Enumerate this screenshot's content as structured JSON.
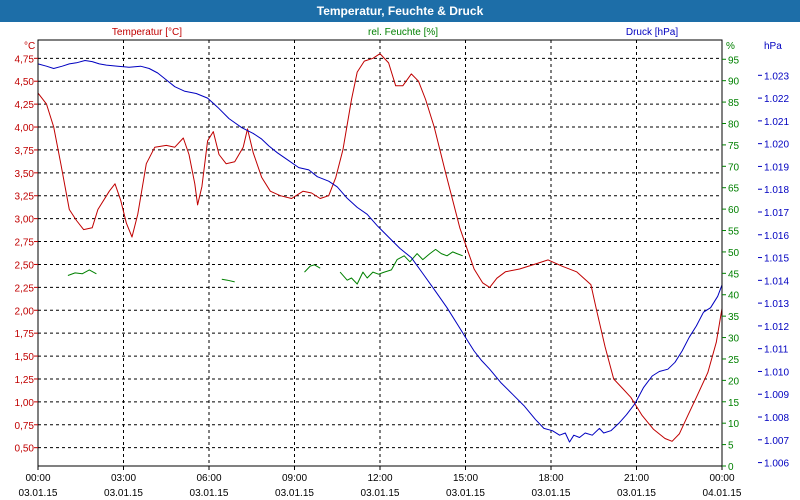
{
  "window": {
    "title": "Temperatur, Feuchte & Druck"
  },
  "chart_data": {
    "type": "line",
    "title": "Temperatur, Feuchte & Druck",
    "x_ticks": [
      {
        "time": "00:00",
        "date": "03.01.15"
      },
      {
        "time": "03:00",
        "date": "03.01.15"
      },
      {
        "time": "06:00",
        "date": "03.01.15"
      },
      {
        "time": "09:00",
        "date": "03.01.15"
      },
      {
        "time": "12:00",
        "date": "03.01.15"
      },
      {
        "time": "15:00",
        "date": "03.01.15"
      },
      {
        "time": "18:00",
        "date": "03.01.15"
      },
      {
        "time": "21:00",
        "date": "03.01.15"
      },
      {
        "time": "00:00",
        "date": "04.01.15"
      }
    ],
    "xlim_hours": [
      0,
      24
    ],
    "axes": {
      "temperature": {
        "label": "Temperatur [°C]",
        "unit": "°C",
        "color": "#c00000",
        "ylim": [
          0.3,
          4.95
        ],
        "ticks": [
          "4,75",
          "4,50",
          "4,25",
          "4,00",
          "3,75",
          "3,50",
          "3,25",
          "3,00",
          "2,75",
          "2,50",
          "2,25",
          "2,00",
          "1,75",
          "1,50",
          "1,25",
          "1,00",
          "0,75",
          "0,50"
        ],
        "tick_values": [
          4.75,
          4.5,
          4.25,
          4.0,
          3.75,
          3.5,
          3.25,
          3.0,
          2.75,
          2.5,
          2.25,
          2.0,
          1.75,
          1.5,
          1.25,
          1.0,
          0.75,
          0.5
        ]
      },
      "humidity": {
        "label": "rel. Feuchte [%]",
        "unit": "%",
        "color": "#008000",
        "ylim": [
          0,
          99.5
        ],
        "ticks": [
          "95",
          "90",
          "85",
          "80",
          "75",
          "70",
          "65",
          "60",
          "55",
          "50",
          "45",
          "40",
          "35",
          "30",
          "25",
          "20",
          "15",
          "10",
          "5",
          "0"
        ],
        "tick_values": [
          95,
          90,
          85,
          80,
          75,
          70,
          65,
          60,
          55,
          50,
          45,
          40,
          35,
          30,
          25,
          20,
          15,
          10,
          5,
          0
        ]
      },
      "pressure": {
        "label": "Druck [hPa]",
        "unit": "hPa",
        "color": "#0000c0",
        "ylim": [
          1005.85,
          1024.55
        ],
        "ticks": [
          "1.023",
          "1.022",
          "1.021",
          "1.020",
          "1.019",
          "1.018",
          "1.017",
          "1.016",
          "1.015",
          "1.014",
          "1.013",
          "1.012",
          "1.011",
          "1.010",
          "1.009",
          "1.008",
          "1.007",
          "1.006"
        ],
        "tick_values": [
          1023,
          1022,
          1021,
          1020,
          1019,
          1018,
          1017,
          1016,
          1015,
          1014,
          1013,
          1012,
          1011,
          1010,
          1009,
          1008,
          1007,
          1006
        ]
      }
    },
    "series": [
      {
        "name": "Temperatur [°C]",
        "axis": "temperature",
        "color": "#c00000",
        "segments": [
          [
            [
              0,
              4.37
            ],
            [
              0.3,
              4.25
            ],
            [
              0.55,
              4.0
            ],
            [
              0.8,
              3.6
            ],
            [
              1.1,
              3.1
            ],
            [
              1.35,
              2.98
            ],
            [
              1.6,
              2.88
            ],
            [
              1.9,
              2.9
            ],
            [
              2.1,
              3.1
            ],
            [
              2.5,
              3.3
            ],
            [
              2.7,
              3.38
            ],
            [
              2.9,
              3.2
            ],
            [
              3.1,
              2.95
            ],
            [
              3.3,
              2.8
            ],
            [
              3.5,
              3.05
            ],
            [
              3.8,
              3.6
            ],
            [
              4.1,
              3.78
            ],
            [
              4.5,
              3.8
            ],
            [
              4.8,
              3.78
            ],
            [
              5.1,
              3.88
            ],
            [
              5.3,
              3.7
            ],
            [
              5.5,
              3.38
            ],
            [
              5.6,
              3.15
            ],
            [
              5.75,
              3.35
            ],
            [
              5.95,
              3.85
            ],
            [
              6.15,
              3.95
            ],
            [
              6.35,
              3.7
            ],
            [
              6.6,
              3.6
            ],
            [
              6.9,
              3.62
            ],
            [
              7.2,
              3.78
            ],
            [
              7.35,
              3.98
            ],
            [
              7.55,
              3.72
            ],
            [
              7.85,
              3.45
            ],
            [
              8.15,
              3.3
            ],
            [
              8.5,
              3.25
            ],
            [
              8.9,
              3.22
            ],
            [
              9.3,
              3.3
            ],
            [
              9.6,
              3.28
            ],
            [
              9.9,
              3.22
            ],
            [
              10.2,
              3.25
            ],
            [
              10.45,
              3.45
            ],
            [
              10.7,
              3.75
            ],
            [
              11.0,
              4.3
            ],
            [
              11.2,
              4.6
            ],
            [
              11.45,
              4.72
            ],
            [
              11.75,
              4.75
            ],
            [
              12.0,
              4.8
            ],
            [
              12.3,
              4.7
            ],
            [
              12.55,
              4.45
            ],
            [
              12.8,
              4.45
            ],
            [
              13.1,
              4.58
            ],
            [
              13.35,
              4.5
            ],
            [
              13.6,
              4.3
            ],
            [
              13.9,
              4.0
            ],
            [
              14.3,
              3.5
            ],
            [
              14.8,
              2.9
            ],
            [
              15.3,
              2.45
            ],
            [
              15.6,
              2.3
            ],
            [
              15.85,
              2.25
            ],
            [
              16.1,
              2.35
            ],
            [
              16.4,
              2.42
            ],
            [
              16.9,
              2.45
            ],
            [
              17.4,
              2.5
            ],
            [
              17.9,
              2.55
            ],
            [
              18.4,
              2.48
            ],
            [
              18.9,
              2.42
            ],
            [
              19.4,
              2.28
            ],
            [
              19.6,
              2.0
            ],
            [
              19.9,
              1.6
            ],
            [
              20.2,
              1.25
            ],
            [
              20.5,
              1.15
            ],
            [
              20.8,
              1.05
            ],
            [
              21.2,
              0.85
            ],
            [
              21.6,
              0.7
            ],
            [
              22.0,
              0.6
            ],
            [
              22.25,
              0.57
            ],
            [
              22.5,
              0.65
            ],
            [
              22.8,
              0.85
            ],
            [
              23.1,
              1.05
            ],
            [
              23.5,
              1.32
            ],
            [
              23.8,
              1.65
            ],
            [
              24.0,
              2.02
            ]
          ]
        ]
      },
      {
        "name": "rel. Feuchte [%]",
        "axis": "humidity",
        "color": "#008000",
        "segments": [
          [
            [
              1.05,
              44.5
            ],
            [
              1.3,
              45.1
            ],
            [
              1.55,
              44.9
            ],
            [
              1.8,
              45.8
            ],
            [
              2.05,
              44.9
            ]
          ],
          [
            [
              6.45,
              43.6
            ],
            [
              6.65,
              43.4
            ],
            [
              6.9,
              43.0
            ]
          ],
          [
            [
              9.35,
              45.3
            ],
            [
              9.55,
              46.7
            ],
            [
              9.7,
              47.0
            ],
            [
              9.9,
              46.2
            ]
          ],
          [
            [
              10.6,
              45.3
            ],
            [
              10.85,
              43.4
            ],
            [
              11.0,
              43.9
            ],
            [
              11.2,
              42.5
            ],
            [
              11.4,
              45.3
            ],
            [
              11.55,
              43.9
            ],
            [
              11.75,
              45.3
            ],
            [
              11.95,
              44.8
            ],
            [
              12.15,
              45.3
            ],
            [
              12.4,
              45.8
            ],
            [
              12.6,
              48.2
            ],
            [
              12.85,
              49.1
            ],
            [
              13.05,
              47.7
            ],
            [
              13.3,
              49.6
            ],
            [
              13.5,
              48.2
            ],
            [
              13.75,
              49.6
            ],
            [
              13.95,
              50.6
            ],
            [
              14.15,
              49.6
            ],
            [
              14.35,
              49.1
            ],
            [
              14.55,
              50.0
            ],
            [
              14.7,
              49.6
            ],
            [
              14.9,
              49.1
            ]
          ]
        ]
      },
      {
        "name": "Druck [hPa]",
        "axis": "pressure",
        "color": "#0000c0",
        "segments": [
          [
            [
              0,
              1023.5
            ],
            [
              0.3,
              1023.4
            ],
            [
              0.55,
              1023.3
            ],
            [
              0.85,
              1023.4
            ],
            [
              1.1,
              1023.5
            ],
            [
              1.35,
              1023.55
            ],
            [
              1.65,
              1023.65
            ],
            [
              1.9,
              1023.6
            ],
            [
              2.15,
              1023.5
            ],
            [
              2.4,
              1023.45
            ],
            [
              2.8,
              1023.4
            ],
            [
              3.2,
              1023.35
            ],
            [
              3.6,
              1023.4
            ],
            [
              3.9,
              1023.3
            ],
            [
              4.2,
              1023.1
            ],
            [
              4.5,
              1022.8
            ],
            [
              4.8,
              1022.5
            ],
            [
              5.15,
              1022.3
            ],
            [
              5.55,
              1022.2
            ],
            [
              5.95,
              1022.0
            ],
            [
              6.3,
              1021.6
            ],
            [
              6.7,
              1021.1
            ],
            [
              7.15,
              1020.7
            ],
            [
              7.55,
              1020.45
            ],
            [
              7.85,
              1020.2
            ],
            [
              8.1,
              1019.9
            ],
            [
              8.4,
              1019.6
            ],
            [
              8.8,
              1019.25
            ],
            [
              9.15,
              1018.95
            ],
            [
              9.5,
              1018.85
            ],
            [
              9.8,
              1018.55
            ],
            [
              10.2,
              1018.35
            ],
            [
              10.5,
              1018.1
            ],
            [
              10.85,
              1017.6
            ],
            [
              11.2,
              1017.2
            ],
            [
              11.55,
              1016.9
            ],
            [
              11.9,
              1016.4
            ],
            [
              12.3,
              1015.9
            ],
            [
              12.7,
              1015.4
            ],
            [
              13.1,
              1015.0
            ],
            [
              13.5,
              1014.3
            ],
            [
              13.9,
              1013.6
            ],
            [
              14.35,
              1012.8
            ],
            [
              14.75,
              1012.0
            ],
            [
              15.05,
              1011.4
            ],
            [
              15.3,
              1010.9
            ],
            [
              15.55,
              1010.5
            ],
            [
              15.85,
              1010.1
            ],
            [
              16.25,
              1009.5
            ],
            [
              16.65,
              1009.0
            ],
            [
              17.05,
              1008.5
            ],
            [
              17.45,
              1007.9
            ],
            [
              17.75,
              1007.5
            ],
            [
              18.05,
              1007.4
            ],
            [
              18.3,
              1007.2
            ],
            [
              18.5,
              1007.3
            ],
            [
              18.65,
              1006.9
            ],
            [
              18.8,
              1007.2
            ],
            [
              19.0,
              1007.1
            ],
            [
              19.2,
              1007.3
            ],
            [
              19.45,
              1007.2
            ],
            [
              19.7,
              1007.5
            ],
            [
              19.85,
              1007.3
            ],
            [
              20.1,
              1007.4
            ],
            [
              20.4,
              1007.75
            ],
            [
              20.65,
              1008.1
            ],
            [
              20.95,
              1008.6
            ],
            [
              21.25,
              1009.3
            ],
            [
              21.55,
              1009.8
            ],
            [
              21.8,
              1010.0
            ],
            [
              22.1,
              1010.1
            ],
            [
              22.35,
              1010.4
            ],
            [
              22.6,
              1010.9
            ],
            [
              22.85,
              1011.5
            ],
            [
              23.1,
              1012.0
            ],
            [
              23.35,
              1012.6
            ],
            [
              23.6,
              1012.8
            ],
            [
              23.85,
              1013.3
            ],
            [
              24.0,
              1013.8
            ]
          ]
        ]
      }
    ]
  }
}
